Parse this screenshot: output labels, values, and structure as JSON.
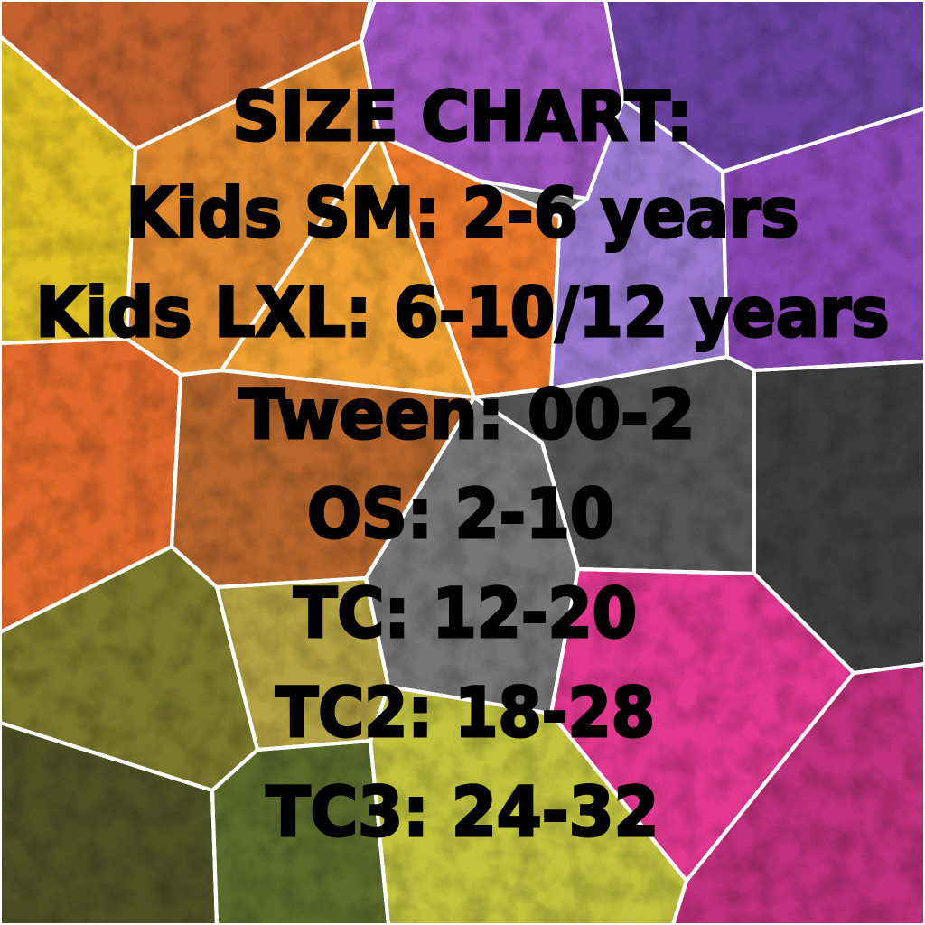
{
  "title": "SIZE CHART:",
  "lines": [
    "Kids SM: 2-6 years",
    "Kids LXL: 6-10/12 years",
    "Tween: 00-2",
    "OS: 2-10",
    "TC: 12-20",
    "TC2: 18-28",
    "TC3: 24-32"
  ],
  "colors": {
    "text": "#000000",
    "cell_border": "#ffffff",
    "palette": [
      "#c2612f",
      "#e2c223",
      "#e28a2f",
      "#f2a232",
      "#ee7a2b",
      "#a056c4",
      "#6b42a2",
      "#9a7ad2",
      "#8a47b6",
      "#555555",
      "#767676",
      "#3d3d3d",
      "#e2692b",
      "#b8662c",
      "#7b7a2c",
      "#b5a443",
      "#4c5224",
      "#5c6a2c",
      "#c2c43e",
      "#e2388f",
      "#c0307c"
    ]
  }
}
